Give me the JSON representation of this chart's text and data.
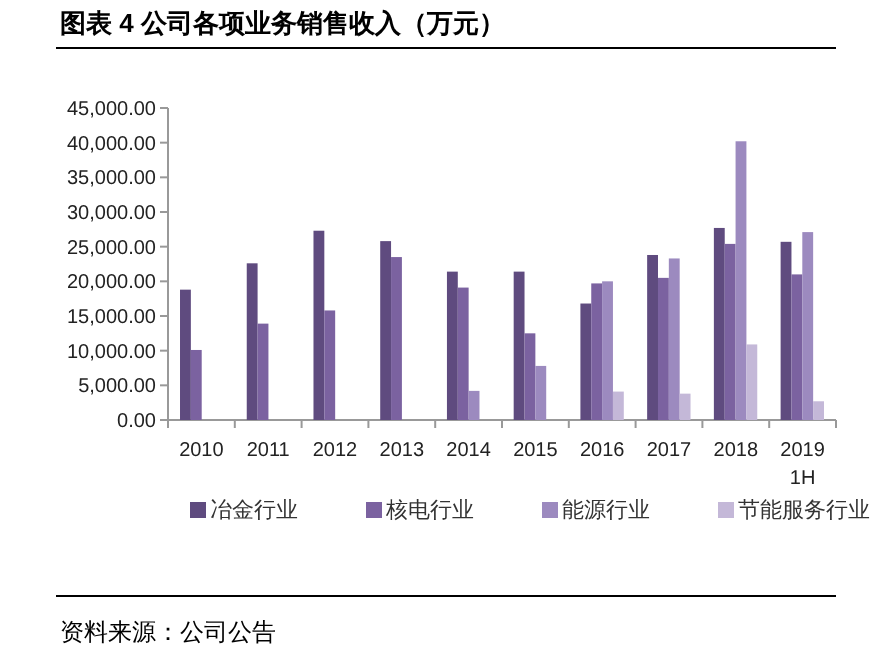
{
  "chart_data": {
    "type": "bar",
    "title": "图表 4 公司各项业务销售收入（万元）",
    "categories": [
      "2010",
      "2011",
      "2012",
      "2013",
      "2014",
      "2015",
      "2016",
      "2017",
      "2018",
      "2019\n1H"
    ],
    "series": [
      {
        "name": "冶金行业",
        "color": "#5f4b7f",
        "values": [
          18800,
          22600,
          27300,
          25800,
          21400,
          21400,
          16800,
          23800,
          27700,
          25700
        ]
      },
      {
        "name": "核电行业",
        "color": "#7b62a0",
        "values": [
          10100,
          13900,
          15800,
          23500,
          19100,
          12500,
          19700,
          20500,
          25400,
          21000
        ]
      },
      {
        "name": "能源行业",
        "color": "#9c8abf",
        "values": [
          null,
          null,
          null,
          null,
          4200,
          7800,
          20000,
          23300,
          40200,
          27100
        ]
      },
      {
        "name": "节能服务行业",
        "color": "#c4b8d8",
        "values": [
          null,
          null,
          null,
          null,
          null,
          null,
          4100,
          3800,
          10900,
          2700
        ]
      }
    ],
    "ylim": [
      0,
      45000
    ],
    "yticks": [
      {
        "value": 0,
        "label": "0.00"
      },
      {
        "value": 5000,
        "label": "5,000.00"
      },
      {
        "value": 10000,
        "label": "10,000.00"
      },
      {
        "value": 15000,
        "label": "15,000.00"
      },
      {
        "value": 20000,
        "label": "20,000.00"
      },
      {
        "value": 25000,
        "label": "25,000.00"
      },
      {
        "value": 30000,
        "label": "30,000.00"
      },
      {
        "value": 35000,
        "label": "35,000.00"
      },
      {
        "value": 40000,
        "label": "40,000.00"
      },
      {
        "value": 45000,
        "label": "45,000.00"
      }
    ],
    "legend": "bottom",
    "annotations": [
      "资料来源：公司公告"
    ]
  }
}
